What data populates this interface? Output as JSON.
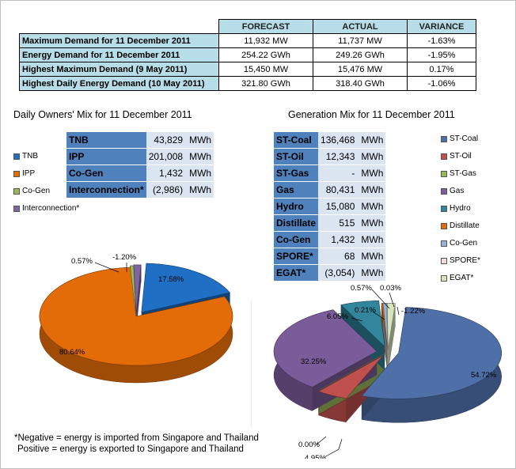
{
  "summary": {
    "headers": [
      "FORECAST",
      "ACTUAL",
      "VARIANCE"
    ],
    "rows": [
      {
        "label": "Maximum Demand for 11 December 2011",
        "forecast": "11,932  MW",
        "actual": "11,737  MW",
        "variance": "-1.63%"
      },
      {
        "label": "Energy Demand for 11 December 2011",
        "forecast": "254.22  GWh",
        "actual": "249.26  GWh",
        "variance": "-1.95%"
      },
      {
        "label": "Highest Maximum Demand (9 May 2011)",
        "forecast": "15,450  MW",
        "actual": "15,476  MW",
        "variance": "0.17%"
      },
      {
        "label": "Highest Daily Energy Demand (10 May 2011)",
        "forecast": "321.80  GWh",
        "actual": "318.40  GWh",
        "variance": "-1.06%"
      }
    ]
  },
  "owners": {
    "title": "Daily Owners' Mix for 11 December 2011",
    "rows": [
      {
        "name": "TNB",
        "value": "43,829",
        "unit": "MWh"
      },
      {
        "name": "IPP",
        "value": "201,008",
        "unit": "MWh"
      },
      {
        "name": "Co-Gen",
        "value": "1,432",
        "unit": "MWh"
      },
      {
        "name": "Interconnection*",
        "value": "(2,986)",
        "unit": "MWh"
      }
    ],
    "legend": [
      "TNB",
      "IPP",
      "Co-Gen",
      "Interconnection*"
    ]
  },
  "generation": {
    "title": "Generation Mix for 11 December 2011",
    "rows": [
      {
        "name": "ST-Coal",
        "value": "136,468",
        "unit": "MWh"
      },
      {
        "name": "ST-Oil",
        "value": "12,343",
        "unit": "MWh"
      },
      {
        "name": "ST-Gas",
        "value": "-",
        "unit": "MWh"
      },
      {
        "name": "Gas",
        "value": "80,431",
        "unit": "MWh"
      },
      {
        "name": "Hydro",
        "value": "15,080",
        "unit": "MWh"
      },
      {
        "name": "Distillate",
        "value": "515",
        "unit": "MWh"
      },
      {
        "name": "Co-Gen",
        "value": "1,432",
        "unit": "MWh"
      },
      {
        "name": "SPORE*",
        "value": "68",
        "unit": "MWh"
      },
      {
        "name": "EGAT*",
        "value": "(3,054)",
        "unit": "MWh"
      }
    ],
    "legend": [
      "ST-Coal",
      "ST-Oil",
      "ST-Gas",
      "Gas",
      "Hydro",
      "Distillate",
      "Co-Gen",
      "SPORE*",
      "EGAT*"
    ]
  },
  "note": {
    "line1": "*Negative = energy is imported from Singapore and Thailand",
    "line2": "Positive = energy is exported to Singapore and Thailand"
  },
  "chart_data": [
    {
      "type": "pie",
      "categories": [
        "TNB",
        "IPP",
        "Co-Gen",
        "Interconnection*"
      ],
      "values": [
        17.58,
        80.64,
        0.57,
        -1.2
      ],
      "labels": [
        "17.58%",
        "80.64%",
        "0.57%",
        "-1.20%"
      ],
      "colors": [
        "#1f6fc5",
        "#e36c09",
        "#9bbb59",
        "#8064a2"
      ],
      "legend": "left"
    },
    {
      "type": "pie",
      "categories": [
        "ST-Coal",
        "ST-Oil",
        "ST-Gas",
        "Gas",
        "Hydro",
        "Distillate",
        "Co-Gen",
        "SPORE*",
        "EGAT*"
      ],
      "values": [
        54.72,
        4.95,
        0.0,
        32.25,
        6.05,
        0.21,
        0.57,
        0.03,
        -1.22
      ],
      "labels": [
        "54.72%",
        "4.95%",
        "0.00%",
        "32.25%",
        "6.05%",
        "0.21%",
        "0.57%",
        "0.03%",
        "-1.22%"
      ],
      "colors": [
        "#4f6fa8",
        "#c0504d",
        "#9bbb59",
        "#7a5c9a",
        "#31859c",
        "#e36c09",
        "#95b3d7",
        "#f2dcdb",
        "#d7e4bc"
      ],
      "legend": "right"
    }
  ]
}
